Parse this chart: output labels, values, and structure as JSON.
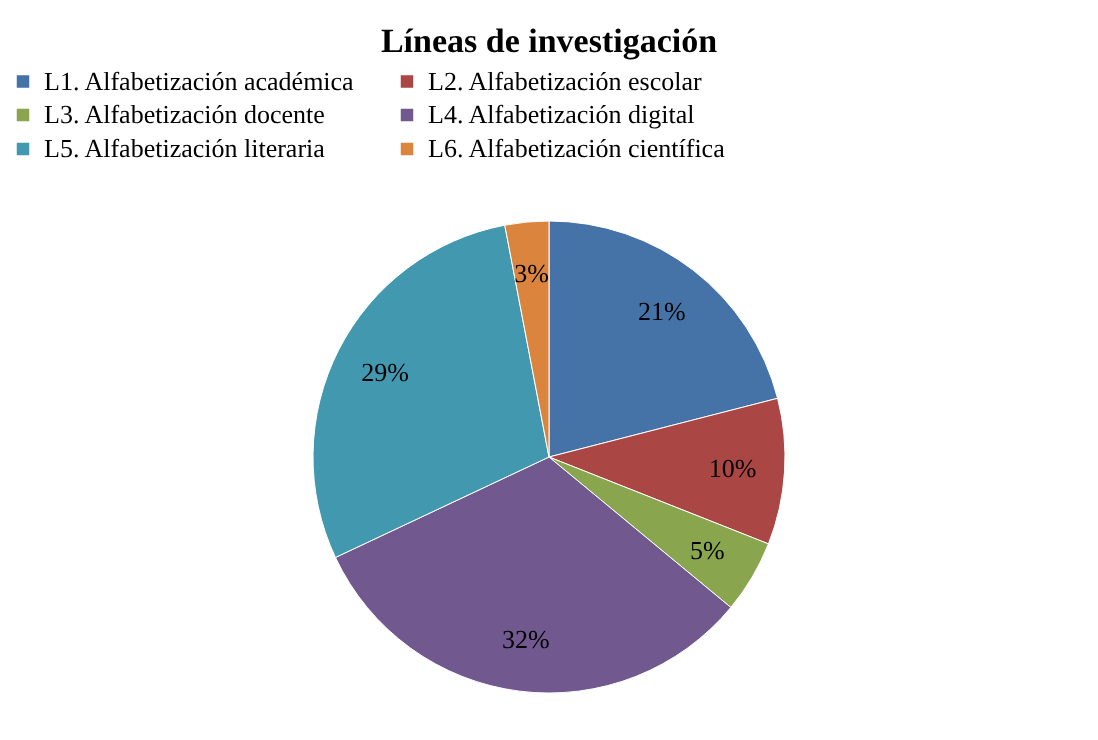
{
  "chart_data": {
    "type": "pie",
    "title": "Líneas de investigación",
    "categories": [
      "L1. Alfabetización académica",
      "L2. Alfabetización escolar",
      "L3. Alfabetización docente",
      "L4. Alfabetización digital",
      "L5. Alfabetización literaria",
      "L6. Alfabetización científica"
    ],
    "values": [
      21,
      10,
      5,
      32,
      29,
      3
    ],
    "value_labels": [
      "21%",
      "10%",
      "5%",
      "32%",
      "29%",
      "3%"
    ],
    "colors": [
      "#4572a7",
      "#aa4643",
      "#89a54e",
      "#71588f",
      "#4198af",
      "#db843d"
    ],
    "legend": "top"
  }
}
